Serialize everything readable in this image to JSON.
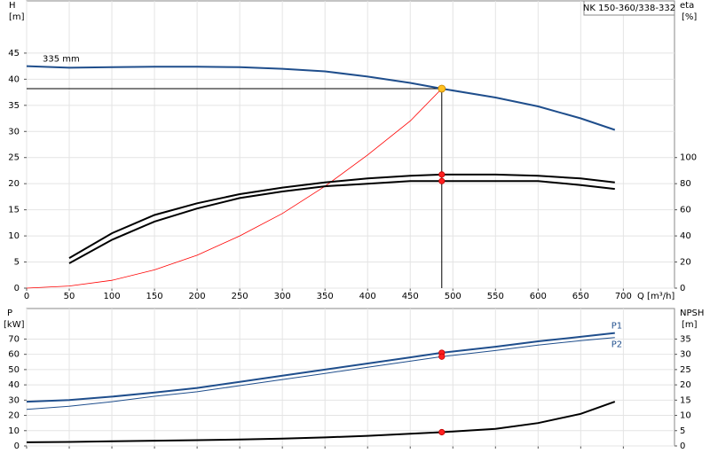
{
  "chart_data": [
    {
      "type": "line",
      "title": "NK 150-360/338-332",
      "y_label": "H",
      "y_unit": "[m]",
      "y2_label": "eta",
      "y2_unit": "[%]",
      "x_label": "Q [m³/h]",
      "annotation": "335 mm",
      "grid": true,
      "xlim": [
        0,
        760
      ],
      "xticks": [
        0,
        50,
        100,
        150,
        200,
        250,
        300,
        350,
        400,
        450,
        500,
        550,
        600,
        650,
        700
      ],
      "ylim": [
        0,
        55
      ],
      "yticks": [
        0,
        5,
        10,
        15,
        20,
        25,
        30,
        35,
        40,
        45
      ],
      "y2lim": [
        0,
        220
      ],
      "y2ticks": [
        0,
        20,
        40,
        60,
        80,
        100
      ],
      "x": [
        0,
        50,
        100,
        150,
        200,
        250,
        300,
        350,
        400,
        450,
        487,
        550,
        600,
        650,
        690
      ],
      "series": [
        {
          "color": "#1f4e8c",
          "values": [
            42.5,
            42.2,
            42.3,
            42.4,
            42.4,
            42.3,
            42.0,
            41.5,
            40.5,
            39.3,
            38.2,
            36.5,
            34.8,
            32.5,
            30.3
          ]
        },
        {
          "color": "#ff0000",
          "values": [
            0,
            0.4,
            1.5,
            3.5,
            6.3,
            10,
            14.3,
            19.5,
            25.5,
            32,
            38.2,
            null,
            null,
            null,
            null
          ]
        },
        {
          "color": "#000000",
          "axis": "y2",
          "values": [
            null,
            23,
            42,
            56,
            65,
            72,
            77,
            81,
            84,
            86,
            87,
            87,
            86,
            84,
            81
          ]
        },
        {
          "color": "#000000",
          "axis": "y2",
          "values": [
            null,
            19,
            37,
            51,
            61,
            69,
            74,
            78,
            80,
            82,
            82,
            82,
            82,
            79,
            76
          ]
        }
      ]
    },
    {
      "type": "line",
      "y_label": "P",
      "y_unit": "[kW]",
      "y2_label": "NPSH",
      "y2_unit": "[m]",
      "grid": true,
      "xlim": [
        0,
        760
      ],
      "xticks": [
        0,
        50,
        100,
        150,
        200,
        250,
        300,
        350,
        400,
        450,
        500,
        550,
        600,
        650,
        700
      ],
      "ylim": [
        0,
        90
      ],
      "yticks": [
        0,
        10,
        20,
        30,
        40,
        50,
        60,
        70
      ],
      "y2lim": [
        0,
        45
      ],
      "y2ticks": [
        0,
        5,
        10,
        15,
        20,
        25,
        30,
        35
      ],
      "x": [
        0,
        50,
        100,
        150,
        200,
        250,
        300,
        350,
        400,
        450,
        487,
        550,
        600,
        650,
        690
      ],
      "series": [
        {
          "name": "P1",
          "color": "#1f4e8c",
          "values": [
            29,
            30,
            32.3,
            35,
            38,
            42,
            46,
            50,
            54,
            58,
            61,
            65,
            68.5,
            71.5,
            74
          ]
        },
        {
          "name": "P2",
          "color": "#1f4e8c",
          "values": [
            24,
            26,
            29,
            32.5,
            35.5,
            39.5,
            43.5,
            47.5,
            51.5,
            55.5,
            58.5,
            62.5,
            66,
            69,
            71
          ]
        },
        {
          "color": "#000000",
          "axis": "y2",
          "values": [
            1.2,
            1.3,
            1.5,
            1.7,
            1.9,
            2.1,
            2.4,
            2.8,
            3.3,
            4,
            4.5,
            5.6,
            7.5,
            10.5,
            14.5
          ]
        }
      ]
    }
  ]
}
